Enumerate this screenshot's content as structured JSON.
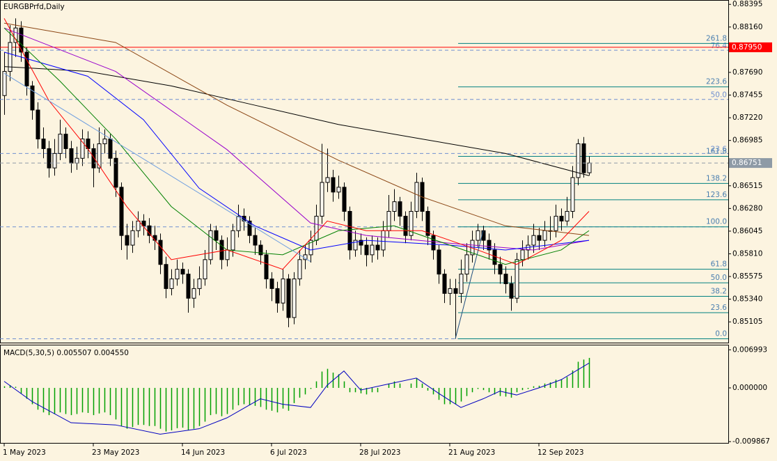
{
  "chart_data": [
    {
      "type": "candlestick",
      "title": "EURGBPrfd,Daily",
      "categories": [
        "1 May 2023",
        null,
        null,
        null,
        null,
        null,
        null,
        null,
        null,
        null,
        null,
        null,
        null,
        null,
        null,
        null,
        "23 May 2023",
        null,
        null,
        null,
        null,
        null,
        null,
        null,
        null,
        null,
        null,
        null,
        null,
        null,
        null,
        null,
        "14 Jun 2023",
        null,
        null,
        null,
        null,
        null,
        null,
        null,
        null,
        null,
        null,
        null,
        null,
        null,
        null,
        null,
        "6 Jul 2023",
        null,
        null,
        null,
        null,
        null,
        null,
        null,
        null,
        null,
        null,
        null,
        null,
        null,
        null,
        null,
        "28 Jul 2023",
        null,
        null,
        null,
        null,
        null,
        null,
        null,
        null,
        null,
        null,
        null,
        null,
        null,
        null,
        null,
        "21 Aug 2023",
        null,
        null,
        null,
        null,
        null,
        null,
        null,
        null,
        null,
        null,
        null,
        null,
        null,
        null,
        null,
        "12 Sep 2023",
        null,
        null,
        null,
        null,
        null,
        null,
        null,
        null,
        null
      ],
      "open": [
        0.8745,
        0.877,
        0.88,
        0.8815,
        0.879,
        0.8755,
        0.873,
        0.87,
        0.869,
        0.867,
        0.8685,
        0.8705,
        0.869,
        0.8675,
        0.868,
        0.87,
        0.869,
        0.867,
        0.8695,
        0.87,
        0.868,
        0.865,
        0.86,
        0.859,
        0.8605,
        0.8615,
        0.861,
        0.86,
        0.8595,
        0.857,
        0.8545,
        0.8555,
        0.8565,
        0.856,
        0.8535,
        0.8545,
        0.8555,
        0.8575,
        0.8605,
        0.8595,
        0.8575,
        0.8585,
        0.8605,
        0.862,
        0.8615,
        0.86,
        0.859,
        0.858,
        0.8555,
        0.8545,
        0.853,
        0.8555,
        0.8515,
        0.8555,
        0.8575,
        0.858,
        0.8595,
        0.862,
        0.8655,
        0.866,
        0.8645,
        0.865,
        0.8625,
        0.8585,
        0.8595,
        0.859,
        0.858,
        0.859,
        0.8585,
        0.8605,
        0.8625,
        0.8635,
        0.862,
        0.86,
        0.8625,
        0.8655,
        0.8625,
        0.86,
        0.8585,
        0.856,
        0.854,
        0.8545,
        0.854,
        0.856,
        0.858,
        0.8595,
        0.8605,
        0.8595,
        0.8585,
        0.857,
        0.856,
        0.855,
        0.8535,
        0.8575,
        0.8585,
        0.859,
        0.86,
        0.8595,
        0.8605,
        0.8605,
        0.862,
        0.8615,
        0.8625,
        0.866,
        0.8695,
        0.8665
      ],
      "high": [
        0.879,
        0.8818,
        0.8825,
        0.8822,
        0.8795,
        0.876,
        0.8738,
        0.8712,
        0.8698,
        0.87,
        0.872,
        0.8712,
        0.8698,
        0.8692,
        0.871,
        0.8708,
        0.8695,
        0.8712,
        0.871,
        0.8705,
        0.8688,
        0.8655,
        0.8612,
        0.8615,
        0.8625,
        0.8622,
        0.8618,
        0.861,
        0.8602,
        0.8578,
        0.8565,
        0.8575,
        0.8572,
        0.8565,
        0.8555,
        0.8568,
        0.8585,
        0.8612,
        0.861,
        0.86,
        0.8598,
        0.8612,
        0.8632,
        0.8628,
        0.862,
        0.8608,
        0.8595,
        0.8585,
        0.8562,
        0.8552,
        0.8565,
        0.856,
        0.8562,
        0.8585,
        0.859,
        0.8605,
        0.8632,
        0.8695,
        0.869,
        0.8668,
        0.8662,
        0.8655,
        0.863,
        0.8605,
        0.8602,
        0.8598,
        0.86,
        0.8598,
        0.8615,
        0.8642,
        0.8648,
        0.864,
        0.8625,
        0.8635,
        0.8665,
        0.866,
        0.863,
        0.8605,
        0.859,
        0.8565,
        0.8555,
        0.8555,
        0.8575,
        0.8592,
        0.8605,
        0.8612,
        0.861,
        0.8602,
        0.8592,
        0.8578,
        0.8568,
        0.8558,
        0.8582,
        0.8595,
        0.86,
        0.8612,
        0.8608,
        0.8615,
        0.862,
        0.8632,
        0.8628,
        0.864,
        0.8672,
        0.87,
        0.8702,
        0.8682
      ],
      "low": [
        0.8725,
        0.876,
        0.8785,
        0.878,
        0.8745,
        0.872,
        0.869,
        0.868,
        0.866,
        0.8662,
        0.8678,
        0.868,
        0.8665,
        0.8668,
        0.8672,
        0.868,
        0.865,
        0.8665,
        0.8685,
        0.8672,
        0.864,
        0.8585,
        0.8575,
        0.8582,
        0.8598,
        0.86,
        0.8592,
        0.8585,
        0.856,
        0.8535,
        0.8538,
        0.8548,
        0.855,
        0.852,
        0.8525,
        0.8538,
        0.8548,
        0.857,
        0.8585,
        0.8565,
        0.8568,
        0.8578,
        0.8598,
        0.8605,
        0.8592,
        0.858,
        0.857,
        0.8545,
        0.8532,
        0.852,
        0.8522,
        0.8505,
        0.8508,
        0.8548,
        0.8565,
        0.8572,
        0.859,
        0.8612,
        0.8645,
        0.8635,
        0.8638,
        0.8615,
        0.8575,
        0.8578,
        0.858,
        0.8568,
        0.8572,
        0.8575,
        0.8578,
        0.8598,
        0.8615,
        0.861,
        0.8592,
        0.8595,
        0.8618,
        0.8615,
        0.859,
        0.8575,
        0.855,
        0.853,
        0.8528,
        0.8493,
        0.853,
        0.8552,
        0.8572,
        0.8588,
        0.8585,
        0.8575,
        0.856,
        0.855,
        0.854,
        0.8522,
        0.853,
        0.8568,
        0.8575,
        0.8582,
        0.8585,
        0.8588,
        0.8595,
        0.8598,
        0.8605,
        0.861,
        0.8618,
        0.8652,
        0.866,
        0.8662
      ],
      "close": [
        0.877,
        0.88,
        0.8815,
        0.879,
        0.8755,
        0.873,
        0.87,
        0.869,
        0.867,
        0.8685,
        0.8705,
        0.869,
        0.8675,
        0.868,
        0.87,
        0.869,
        0.867,
        0.8695,
        0.87,
        0.868,
        0.865,
        0.86,
        0.859,
        0.8605,
        0.8615,
        0.861,
        0.86,
        0.8595,
        0.857,
        0.8545,
        0.8555,
        0.8565,
        0.856,
        0.8535,
        0.8545,
        0.8555,
        0.8575,
        0.8605,
        0.8595,
        0.8575,
        0.8585,
        0.8605,
        0.862,
        0.8615,
        0.86,
        0.859,
        0.858,
        0.8555,
        0.8545,
        0.853,
        0.8555,
        0.8515,
        0.8555,
        0.8575,
        0.858,
        0.8595,
        0.862,
        0.8655,
        0.866,
        0.8645,
        0.865,
        0.8625,
        0.8585,
        0.8595,
        0.859,
        0.858,
        0.859,
        0.8585,
        0.8605,
        0.8625,
        0.8635,
        0.862,
        0.86,
        0.8625,
        0.8655,
        0.8625,
        0.86,
        0.8585,
        0.856,
        0.854,
        0.8545,
        0.854,
        0.856,
        0.858,
        0.8595,
        0.8605,
        0.8595,
        0.8585,
        0.857,
        0.856,
        0.855,
        0.8535,
        0.8575,
        0.8585,
        0.859,
        0.86,
        0.8595,
        0.8605,
        0.8605,
        0.862,
        0.8615,
        0.8625,
        0.866,
        0.8695,
        0.8665,
        0.86751
      ],
      "ylim": [
        0.8489,
        0.8844
      ],
      "yticks": [
        {
          "value": 0.88395,
          "label": "0.88395"
        },
        {
          "value": 0.8816,
          "label": "0.88160"
        },
        {
          "value": 0.8769,
          "label": "0.87690"
        },
        {
          "value": 0.87455,
          "label": "0.87455"
        },
        {
          "value": 0.8722,
          "label": "0.87220"
        },
        {
          "value": 0.86985,
          "label": "0.86985"
        },
        {
          "value": 0.86515,
          "label": "0.86515"
        },
        {
          "value": 0.8628,
          "label": "0.86280"
        },
        {
          "value": 0.86045,
          "label": "0.86045"
        },
        {
          "value": 0.8581,
          "label": "0.85810"
        },
        {
          "value": 0.85575,
          "label": "0.85575"
        },
        {
          "value": 0.8534,
          "label": "0.85340"
        },
        {
          "value": 0.85105,
          "label": "0.85105"
        }
      ],
      "hline": {
        "value": 0.8795,
        "label": "0.87950",
        "color": "#ff0000"
      },
      "lines": [
        {
          "color": "#000000",
          "x": [
            0,
            15,
            30,
            45,
            60,
            75,
            90,
            105
          ],
          "values": [
            0.8775,
            0.877,
            0.8755,
            0.8735,
            0.8715,
            0.87,
            0.8685,
            0.8662
          ]
        },
        {
          "color": "#8b4513",
          "x": [
            0,
            20,
            40,
            60,
            75,
            90,
            105
          ],
          "values": [
            0.882,
            0.88,
            0.8735,
            0.8678,
            0.864,
            0.861,
            0.86
          ]
        },
        {
          "color": "#9900cc",
          "x": [
            0,
            20,
            40,
            55,
            65,
            80,
            95,
            105
          ],
          "values": [
            0.8815,
            0.877,
            0.8689,
            0.8613,
            0.86,
            0.8592,
            0.8585,
            0.8595
          ]
        },
        {
          "color": "#0000ff",
          "x": [
            0,
            15,
            25,
            35,
            45,
            55,
            65,
            80,
            90,
            105
          ],
          "values": [
            0.879,
            0.8765,
            0.872,
            0.8649,
            0.861,
            0.8585,
            0.8595,
            0.859,
            0.8585,
            0.8595
          ]
        },
        {
          "color": "#008000",
          "x": [
            0,
            10,
            20,
            30,
            40,
            50,
            60,
            70,
            80,
            90,
            100,
            105
          ],
          "values": [
            0.8815,
            0.876,
            0.87,
            0.863,
            0.8585,
            0.858,
            0.8605,
            0.861,
            0.859,
            0.857,
            0.8585,
            0.8605
          ]
        },
        {
          "color": "#ff0000",
          "x": [
            0,
            8,
            15,
            22,
            30,
            40,
            50,
            58,
            65,
            75,
            85,
            92,
            100,
            105
          ],
          "values": [
            0.8825,
            0.874,
            0.869,
            0.863,
            0.8575,
            0.8585,
            0.8565,
            0.8615,
            0.8605,
            0.8605,
            0.8585,
            0.857,
            0.8595,
            0.8625
          ]
        },
        {
          "color": "#6f9fe0",
          "x": [
            0,
            55
          ],
          "values": [
            0.8768,
            0.8573
          ]
        },
        {
          "color": "#1f4f7f",
          "x": [
            81,
            86
          ],
          "values": [
            0.8493,
            0.8605
          ]
        }
      ],
      "fib": {
        "color": "#008080",
        "label_color": "#4a7fb0",
        "x_start": 81,
        "levels": [
          {
            "value": 0.8493,
            "label": "0.0"
          },
          {
            "value": 0.852,
            "label": "23.6"
          },
          {
            "value": 0.8537,
            "label": "38.2"
          },
          {
            "value": 0.8551,
            "label": "50.0"
          },
          {
            "value": 0.8565,
            "label": "61.8"
          },
          {
            "value": 0.8609,
            "label": "100.0"
          },
          {
            "value": 0.8637,
            "label": "123.6"
          },
          {
            "value": 0.8654,
            "label": "138.2"
          },
          {
            "value": 0.8682,
            "label": "161.8"
          },
          {
            "value": 0.8754,
            "label": "223.6"
          },
          {
            "value": 0.8799,
            "label": "261.8"
          }
        ]
      },
      "fib2": {
        "color": "#6f8fd0",
        "levels": [
          {
            "value": 0.8792,
            "label": "76.4"
          },
          {
            "value": 0.8741,
            "label": "50.0"
          },
          {
            "value": 0.8685,
            "label": "23.6"
          }
        ]
      },
      "dashed_levels": [
        0.8609,
        0.8493
      ]
    },
    {
      "type": "macd",
      "title": "MACD(5,30,5) 0.005507 0.004550",
      "color": "#00a000",
      "values": [
        0.0003,
        0.0005,
        0.0002,
        -0.001,
        -0.002,
        -0.003,
        -0.004,
        -0.0045,
        -0.005,
        -0.0048,
        -0.0045,
        -0.0048,
        -0.005,
        -0.0048,
        -0.0045,
        -0.0046,
        -0.005,
        -0.0047,
        -0.0045,
        -0.005,
        -0.0058,
        -0.007,
        -0.0075,
        -0.0072,
        -0.0068,
        -0.0068,
        -0.007,
        -0.007,
        -0.0075,
        -0.008,
        -0.0078,
        -0.0074,
        -0.0073,
        -0.0078,
        -0.0075,
        -0.007,
        -0.0062,
        -0.005,
        -0.0048,
        -0.0052,
        -0.0048,
        -0.004,
        -0.0032,
        -0.003,
        -0.0032,
        -0.0033,
        -0.0035,
        -0.004,
        -0.0042,
        -0.0045,
        -0.0038,
        -0.0042,
        -0.0028,
        -0.0018,
        -0.0012,
        -0.0002,
        0.0012,
        0.003,
        0.0035,
        0.0028,
        0.0025,
        0.0012,
        -0.0008,
        -0.0008,
        -0.001,
        -0.0012,
        -0.0008,
        -0.0008,
        0.0,
        0.0008,
        0.0012,
        0.0008,
        0.0,
        0.0008,
        0.0018,
        0.0008,
        -0.0005,
        -0.0012,
        -0.0022,
        -0.003,
        -0.003,
        -0.003,
        -0.0025,
        -0.0015,
        -0.0008,
        -0.0002,
        -0.0004,
        -0.0008,
        -0.0012,
        -0.0015,
        -0.0016,
        -0.0018,
        -0.0008,
        -0.0004,
        -0.0002,
        0.0003,
        0.0004,
        0.0008,
        0.001,
        0.0015,
        0.0016,
        0.002,
        0.0032,
        0.0048,
        0.0052,
        0.005507
      ],
      "signal": {
        "color": "#0000c0",
        "x": [
          0,
          5,
          12,
          20,
          28,
          35,
          40,
          46,
          50,
          55,
          58,
          61,
          64,
          68,
          74,
          78,
          82,
          86,
          89,
          92,
          96,
          100,
          105
        ],
        "values": [
          0.0012,
          -0.0025,
          -0.0064,
          -0.0068,
          -0.0085,
          -0.0075,
          -0.0055,
          -0.002,
          -0.003,
          -0.0036,
          0.0005,
          0.0031,
          -0.0004,
          0.0005,
          0.0018,
          -0.001,
          -0.0036,
          -0.002,
          -0.0006,
          -0.0013,
          0.0,
          0.0015,
          0.00455
        ]
      },
      "ylim": [
        -0.0101,
        0.0078
      ],
      "yticks": [
        {
          "value": 0.006993,
          "label": "0.006993"
        },
        {
          "value": 0,
          "label": "0.000000"
        },
        {
          "value": -0.009867,
          "label": "-0.009867"
        }
      ]
    }
  ]
}
